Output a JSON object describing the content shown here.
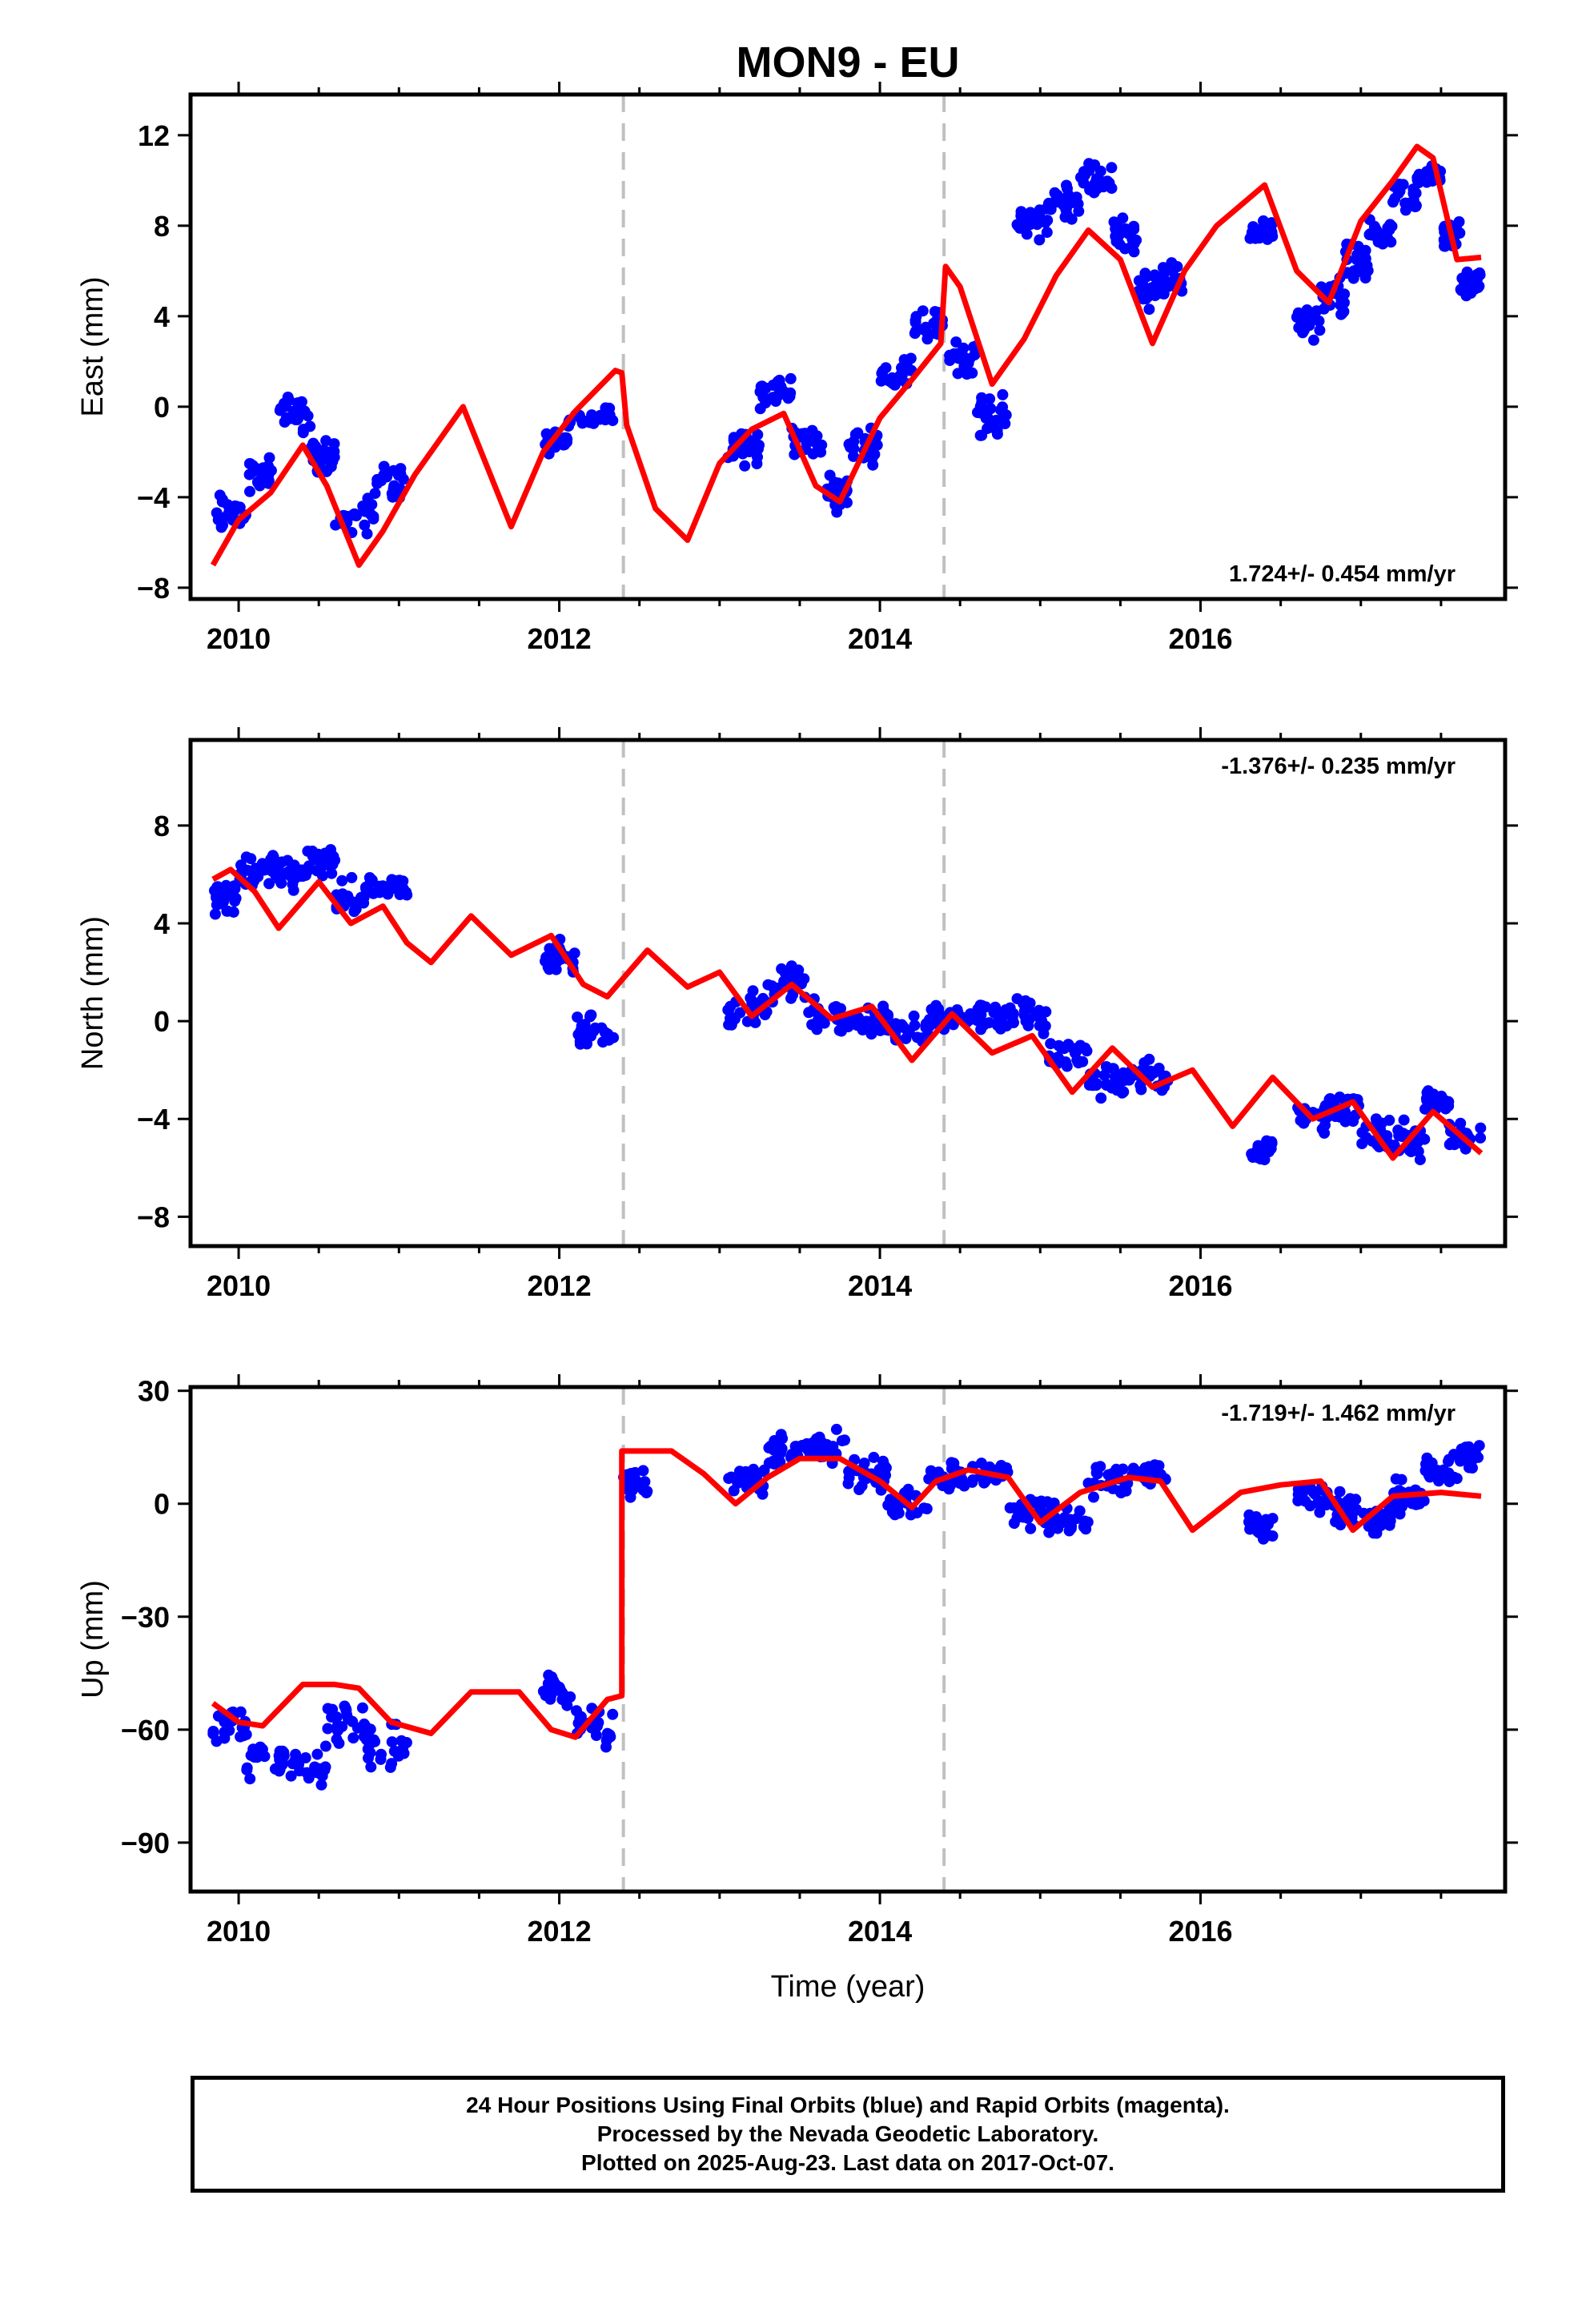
{
  "chart_data": {
    "type": "scatter",
    "title": "MON9 - EU",
    "xlabel": "Time (year)",
    "xlim": [
      2009.7,
      2017.9
    ],
    "x_ticks": [
      "2010",
      "2012",
      "2014",
      "2016"
    ],
    "grid": false,
    "offset_epochs": [
      2012.4,
      2014.4
    ],
    "colors": {
      "final_orbits": "#0000ff",
      "model": "#ff0000",
      "offsets": "#c0c0c0",
      "axes": "#000000"
    },
    "panels": [
      {
        "id": "east",
        "ylabel": "East (mm)",
        "ylim": [
          -8.5,
          13.8
        ],
        "y_ticks": [
          "−8",
          "−4",
          "0",
          "4",
          "8",
          "12"
        ],
        "rate_label": "1.724+/- 0.454 mm/yr",
        "rate_label_position": "bottom-right",
        "model": {
          "x": [
            2009.84,
            2010.0,
            2010.2,
            2010.4,
            2010.55,
            2010.75,
            2010.9,
            2011.1,
            2011.4,
            2011.7,
            2011.9,
            2012.1,
            2012.35,
            2012.39,
            2012.42,
            2012.6,
            2012.8,
            2013.0,
            2013.2,
            2013.4,
            2013.6,
            2013.75,
            2014.0,
            2014.2,
            2014.38,
            2014.41,
            2014.5,
            2014.7,
            2014.9,
            2015.1,
            2015.3,
            2015.5,
            2015.7,
            2015.9,
            2016.1,
            2016.4,
            2016.6,
            2016.8,
            2017.0,
            2017.2,
            2017.35,
            2017.45,
            2017.6,
            2017.75
          ],
          "y": [
            -7.0,
            -5.0,
            -3.8,
            -1.7,
            -3.5,
            -7.0,
            -5.5,
            -3.0,
            0.0,
            -5.3,
            -2.0,
            -0.2,
            1.6,
            1.5,
            -0.8,
            -4.5,
            -5.9,
            -2.5,
            -1.0,
            -0.3,
            -3.5,
            -4.2,
            -0.5,
            1.2,
            2.8,
            6.2,
            5.3,
            1.0,
            3.0,
            5.8,
            7.8,
            6.5,
            2.8,
            6.0,
            8.0,
            9.8,
            6.0,
            4.6,
            8.2,
            10.0,
            11.5,
            11.0,
            6.5,
            6.6
          ]
        },
        "clusters": [
          [
            2009.84,
            2010.05,
            -6.0,
            -3.5
          ],
          [
            2010.05,
            2010.25,
            -4.0,
            -2.0
          ],
          [
            2010.25,
            2010.45,
            -1.5,
            0.8
          ],
          [
            2010.45,
            2010.6,
            -3.2,
            -1.2
          ],
          [
            2010.6,
            2010.85,
            -6.0,
            -3.6
          ],
          [
            2010.85,
            2011.05,
            -4.5,
            -2.2
          ],
          [
            2011.9,
            2012.05,
            -2.2,
            -1.0
          ],
          [
            2012.05,
            2012.35,
            -1.5,
            0.5
          ],
          [
            2013.05,
            2013.25,
            -2.8,
            -0.5
          ],
          [
            2013.25,
            2013.45,
            -0.4,
            1.6
          ],
          [
            2013.45,
            2013.65,
            -2.5,
            -0.5
          ],
          [
            2013.65,
            2013.8,
            -4.8,
            -2.8
          ],
          [
            2013.8,
            2014.0,
            -2.8,
            -0.5
          ],
          [
            2014.0,
            2014.2,
            0.5,
            2.5
          ],
          [
            2014.2,
            2014.4,
            2.6,
            4.6
          ],
          [
            2014.4,
            2014.6,
            1.2,
            3.2
          ],
          [
            2014.6,
            2014.8,
            -1.6,
            0.8
          ],
          [
            2014.85,
            2015.05,
            7.0,
            9.5
          ],
          [
            2015.05,
            2015.25,
            8.0,
            10.0
          ],
          [
            2015.25,
            2015.45,
            9.0,
            11.0
          ],
          [
            2015.45,
            2015.6,
            6.5,
            9.0
          ],
          [
            2015.6,
            2015.75,
            4.0,
            6.2
          ],
          [
            2015.75,
            2015.9,
            4.5,
            6.5
          ],
          [
            2016.3,
            2016.45,
            7.0,
            8.5
          ],
          [
            2016.6,
            2016.75,
            2.5,
            4.8
          ],
          [
            2016.75,
            2016.9,
            3.5,
            6.0
          ],
          [
            2016.9,
            2017.05,
            5.0,
            7.5
          ],
          [
            2017.05,
            2017.2,
            6.5,
            8.8
          ],
          [
            2017.2,
            2017.35,
            8.0,
            10.2
          ],
          [
            2017.35,
            2017.5,
            9.5,
            11.0
          ],
          [
            2017.5,
            2017.62,
            6.5,
            8.5
          ],
          [
            2017.62,
            2017.75,
            4.5,
            6.5
          ]
        ]
      },
      {
        "id": "north",
        "ylabel": "North (mm)",
        "ylim": [
          -9.2,
          11.5
        ],
        "y_ticks": [
          "−8",
          "−4",
          "0",
          "4",
          "8"
        ],
        "rate_label": "-1.376+/- 0.235 mm/yr",
        "rate_label_position": "top-right",
        "model": {
          "x": [
            2009.84,
            2009.95,
            2010.1,
            2010.25,
            2010.5,
            2010.7,
            2010.9,
            2011.05,
            2011.2,
            2011.45,
            2011.7,
            2011.95,
            2012.15,
            2012.3,
            2012.55,
            2012.8,
            2013.0,
            2013.2,
            2013.45,
            2013.7,
            2013.95,
            2014.2,
            2014.45,
            2014.7,
            2014.95,
            2015.2,
            2015.45,
            2015.7,
            2015.95,
            2016.2,
            2016.45,
            2016.7,
            2016.95,
            2017.2,
            2017.45,
            2017.75
          ],
          "y": [
            5.8,
            6.2,
            5.3,
            3.8,
            5.7,
            4.0,
            4.7,
            3.2,
            2.4,
            4.3,
            2.7,
            3.5,
            1.5,
            1.0,
            2.9,
            1.4,
            2.0,
            0.2,
            1.5,
            0.1,
            0.6,
            -1.6,
            0.3,
            -1.3,
            -0.6,
            -2.9,
            -1.1,
            -2.7,
            -2.0,
            -4.3,
            -2.3,
            -4.0,
            -3.3,
            -5.6,
            -3.7,
            -5.4
          ]
        },
        "clusters": [
          [
            2009.84,
            2010.0,
            4.0,
            6.0
          ],
          [
            2010.0,
            2010.2,
            5.0,
            7.0
          ],
          [
            2010.2,
            2010.4,
            5.0,
            7.2
          ],
          [
            2010.4,
            2010.6,
            5.5,
            7.5
          ],
          [
            2010.6,
            2010.8,
            4.0,
            6.0
          ],
          [
            2010.8,
            2011.05,
            4.5,
            6.5
          ],
          [
            2011.9,
            2012.1,
            1.5,
            3.5
          ],
          [
            2012.1,
            2012.35,
            -1.5,
            0.8
          ],
          [
            2013.05,
            2013.3,
            -0.5,
            1.5
          ],
          [
            2013.3,
            2013.55,
            0.5,
            2.5
          ],
          [
            2013.55,
            2013.8,
            -0.8,
            1.2
          ],
          [
            2013.8,
            2014.05,
            -1.0,
            1.0
          ],
          [
            2014.05,
            2014.3,
            -1.2,
            0.8
          ],
          [
            2014.3,
            2014.55,
            -0.8,
            1.2
          ],
          [
            2014.55,
            2014.8,
            -0.8,
            1.2
          ],
          [
            2014.8,
            2015.05,
            -0.8,
            1.2
          ],
          [
            2015.05,
            2015.3,
            -2.5,
            -0.3
          ],
          [
            2015.3,
            2015.55,
            -3.5,
            -1.5
          ],
          [
            2015.55,
            2015.8,
            -3.3,
            -1.3
          ],
          [
            2016.3,
            2016.45,
            -6.0,
            -4.5
          ],
          [
            2016.6,
            2016.8,
            -4.8,
            -2.8
          ],
          [
            2016.8,
            2017.0,
            -4.6,
            -2.6
          ],
          [
            2017.0,
            2017.2,
            -5.8,
            -3.8
          ],
          [
            2017.2,
            2017.4,
            -5.8,
            -3.8
          ],
          [
            2017.4,
            2017.55,
            -4.2,
            -2.4
          ],
          [
            2017.55,
            2017.75,
            -5.6,
            -3.6
          ]
        ]
      },
      {
        "id": "up",
        "ylabel": "Up (mm)",
        "ylim": [
          -103,
          31
        ],
        "y_ticks": [
          "30",
          "0",
          "−30",
          "−60",
          "−90"
        ],
        "rate_label": "-1.719+/- 1.462 mm/yr",
        "rate_label_position": "top-right",
        "model": {
          "x": [
            2009.84,
            2010.0,
            2010.15,
            2010.4,
            2010.6,
            2010.75,
            2010.95,
            2011.2,
            2011.45,
            2011.75,
            2011.95,
            2012.1,
            2012.3,
            2012.39,
            2012.39,
            2012.7,
            2012.9,
            2013.1,
            2013.3,
            2013.5,
            2013.75,
            2014.0,
            2014.2,
            2014.35,
            2014.55,
            2014.8,
            2015.0,
            2015.25,
            2015.55,
            2015.75,
            2015.95,
            2016.25,
            2016.5,
            2016.75,
            2016.95,
            2017.2,
            2017.5,
            2017.75
          ],
          "y": [
            -53,
            -58,
            -59,
            -48,
            -48,
            -49,
            -58,
            -61,
            -50,
            -50,
            -60,
            -62,
            -52,
            -51,
            14,
            14,
            8,
            0,
            7,
            12,
            12,
            6,
            -1,
            6,
            9,
            7,
            -5,
            3,
            7,
            6,
            -7,
            3,
            5,
            6,
            -7,
            2,
            3,
            2
          ]
        },
        "clusters": [
          [
            2009.84,
            2010.05,
            -66,
            -52
          ],
          [
            2010.05,
            2010.3,
            -75,
            -60
          ],
          [
            2010.3,
            2010.55,
            -78,
            -63
          ],
          [
            2010.55,
            2010.8,
            -66,
            -50
          ],
          [
            2010.8,
            2011.05,
            -72,
            -57
          ],
          [
            2011.9,
            2012.1,
            -56,
            -44
          ],
          [
            2012.1,
            2012.35,
            -68,
            -52
          ],
          [
            2012.4,
            2012.55,
            0,
            12
          ],
          [
            2013.05,
            2013.3,
            0,
            12
          ],
          [
            2013.3,
            2013.55,
            8,
            20
          ],
          [
            2013.55,
            2013.8,
            10,
            22
          ],
          [
            2013.8,
            2014.05,
            2,
            14
          ],
          [
            2014.05,
            2014.3,
            -6,
            6
          ],
          [
            2014.3,
            2014.55,
            2,
            14
          ],
          [
            2014.55,
            2014.8,
            2,
            14
          ],
          [
            2014.8,
            2015.05,
            -8,
            4
          ],
          [
            2015.05,
            2015.3,
            -10,
            2
          ],
          [
            2015.3,
            2015.55,
            0,
            12
          ],
          [
            2015.55,
            2015.8,
            2,
            14
          ],
          [
            2016.3,
            2016.45,
            -12,
            -2
          ],
          [
            2016.6,
            2016.8,
            -4,
            8
          ],
          [
            2016.8,
            2017.0,
            -8,
            4
          ],
          [
            2017.0,
            2017.2,
            -10,
            2
          ],
          [
            2017.2,
            2017.4,
            -4,
            8
          ],
          [
            2017.4,
            2017.6,
            4,
            14
          ],
          [
            2017.6,
            2017.75,
            6,
            18
          ]
        ]
      }
    ]
  },
  "footer": {
    "line1": "24 Hour Positions Using Final Orbits (blue) and Rapid Orbits (magenta).",
    "line2": "Processed by the Nevada Geodetic Laboratory.",
    "line3": "Plotted on 2025-Aug-23. Last data on 2017-Oct-07."
  }
}
